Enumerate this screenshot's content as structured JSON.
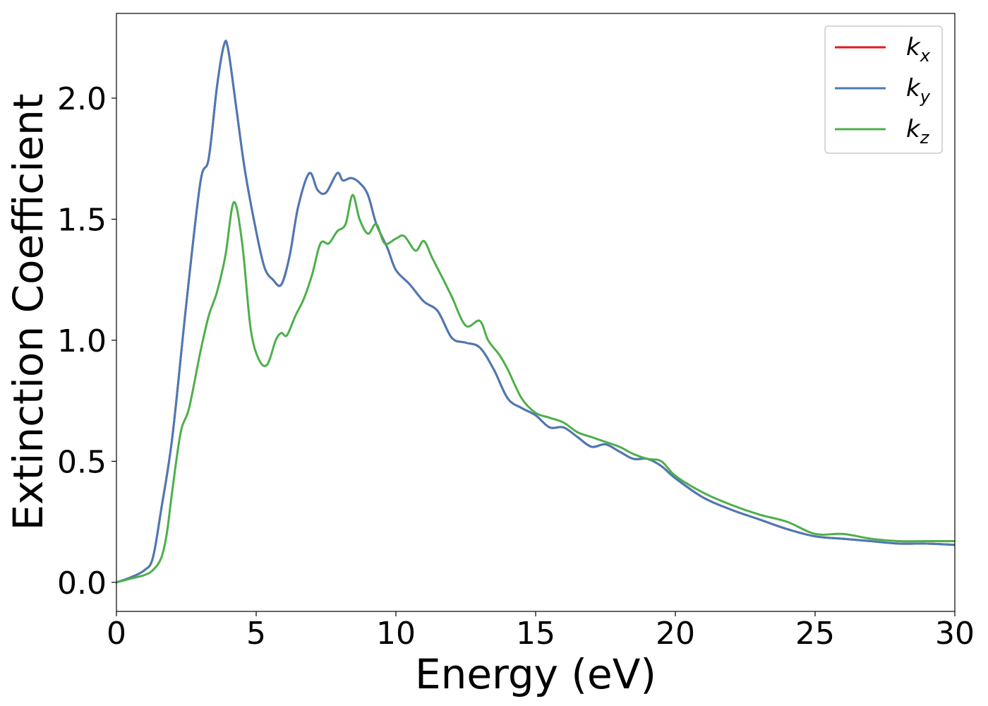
{
  "chart_data": {
    "type": "line",
    "title": "",
    "xlabel": "Energy (eV)",
    "ylabel": "Extinction Coefficient",
    "xlim": [
      0,
      30
    ],
    "ylim": [
      -0.12,
      2.35
    ],
    "xticks": [
      0,
      5,
      10,
      15,
      20,
      25,
      30
    ],
    "xtick_labels": [
      "0",
      "5",
      "10",
      "15",
      "20",
      "25",
      "30"
    ],
    "yticks": [
      0.0,
      0.5,
      1.0,
      1.5,
      2.0
    ],
    "ytick_labels": [
      "0.0",
      "0.5",
      "1.0",
      "1.5",
      "2.0"
    ],
    "grid": false,
    "legend_position": "top-right",
    "series": [
      {
        "name": "k_x",
        "legend_base": "k",
        "legend_sub": "x",
        "color": "#e41a1c",
        "x": [
          0,
          0.5,
          1.0,
          1.3,
          1.6,
          2.0,
          2.5,
          3.0,
          3.3,
          3.6,
          3.85,
          4.0,
          4.3,
          4.6,
          5.0,
          5.3,
          5.6,
          5.9,
          6.2,
          6.5,
          6.9,
          7.2,
          7.5,
          7.9,
          8.1,
          8.4,
          8.7,
          9.0,
          9.3,
          9.7,
          10.0,
          10.5,
          11.0,
          11.5,
          12.0,
          12.5,
          13.0,
          13.5,
          14.0,
          14.5,
          15.0,
          15.5,
          16.0,
          16.5,
          17.0,
          17.5,
          18.0,
          18.5,
          19.0,
          19.5,
          20.0,
          21.0,
          22.0,
          23.0,
          24.0,
          25.0,
          26.0,
          27.0,
          28.0,
          29.0,
          30.0
        ],
        "y": [
          0.0,
          0.02,
          0.05,
          0.1,
          0.3,
          0.6,
          1.15,
          1.65,
          1.75,
          2.05,
          2.22,
          2.2,
          1.95,
          1.7,
          1.45,
          1.3,
          1.25,
          1.23,
          1.35,
          1.55,
          1.69,
          1.62,
          1.61,
          1.69,
          1.66,
          1.67,
          1.65,
          1.6,
          1.48,
          1.38,
          1.29,
          1.23,
          1.16,
          1.12,
          1.01,
          0.99,
          0.97,
          0.88,
          0.76,
          0.72,
          0.69,
          0.64,
          0.64,
          0.6,
          0.56,
          0.57,
          0.54,
          0.51,
          0.51,
          0.48,
          0.43,
          0.35,
          0.3,
          0.26,
          0.22,
          0.19,
          0.18,
          0.17,
          0.16,
          0.16,
          0.155
        ]
      },
      {
        "name": "k_y",
        "legend_base": "k",
        "legend_sub": "y",
        "color": "#4a7ab5",
        "x": [
          0,
          0.5,
          1.0,
          1.3,
          1.6,
          2.0,
          2.5,
          3.0,
          3.3,
          3.6,
          3.85,
          4.0,
          4.3,
          4.6,
          5.0,
          5.3,
          5.6,
          5.9,
          6.2,
          6.5,
          6.9,
          7.2,
          7.5,
          7.9,
          8.1,
          8.4,
          8.7,
          9.0,
          9.3,
          9.7,
          10.0,
          10.5,
          11.0,
          11.5,
          12.0,
          12.5,
          13.0,
          13.5,
          14.0,
          14.5,
          15.0,
          15.5,
          16.0,
          16.5,
          17.0,
          17.5,
          18.0,
          18.5,
          19.0,
          19.5,
          20.0,
          21.0,
          22.0,
          23.0,
          24.0,
          25.0,
          26.0,
          27.0,
          28.0,
          29.0,
          30.0
        ],
        "y": [
          0.0,
          0.02,
          0.05,
          0.1,
          0.3,
          0.6,
          1.15,
          1.65,
          1.75,
          2.05,
          2.22,
          2.2,
          1.95,
          1.7,
          1.45,
          1.3,
          1.25,
          1.23,
          1.35,
          1.55,
          1.69,
          1.62,
          1.61,
          1.69,
          1.66,
          1.67,
          1.65,
          1.6,
          1.48,
          1.38,
          1.29,
          1.23,
          1.16,
          1.12,
          1.01,
          0.99,
          0.97,
          0.88,
          0.76,
          0.72,
          0.69,
          0.64,
          0.64,
          0.6,
          0.56,
          0.57,
          0.54,
          0.51,
          0.51,
          0.48,
          0.43,
          0.35,
          0.3,
          0.26,
          0.22,
          0.19,
          0.18,
          0.17,
          0.16,
          0.16,
          0.155
        ]
      },
      {
        "name": "k_z",
        "legend_base": "k",
        "legend_sub": "z",
        "color": "#4daf4a",
        "x": [
          0,
          0.5,
          1.0,
          1.3,
          1.6,
          1.8,
          2.0,
          2.3,
          2.6,
          3.0,
          3.3,
          3.6,
          3.9,
          4.2,
          4.5,
          4.8,
          5.1,
          5.4,
          5.7,
          5.9,
          6.1,
          6.4,
          6.7,
          7.0,
          7.3,
          7.6,
          7.9,
          8.2,
          8.45,
          8.7,
          9.0,
          9.3,
          9.6,
          10.0,
          10.3,
          10.7,
          11.0,
          11.3,
          11.7,
          12.0,
          12.5,
          13.0,
          13.3,
          13.7,
          14.0,
          14.5,
          15.0,
          15.5,
          16.0,
          16.5,
          17.0,
          17.5,
          18.0,
          18.5,
          19.0,
          19.5,
          20.0,
          21.0,
          22.0,
          23.0,
          24.0,
          25.0,
          26.0,
          27.0,
          28.0,
          29.0,
          30.0
        ],
        "y": [
          0.0,
          0.015,
          0.03,
          0.05,
          0.1,
          0.2,
          0.38,
          0.62,
          0.72,
          0.95,
          1.1,
          1.2,
          1.35,
          1.57,
          1.4,
          1.05,
          0.92,
          0.9,
          1.0,
          1.03,
          1.02,
          1.1,
          1.17,
          1.27,
          1.4,
          1.4,
          1.45,
          1.48,
          1.6,
          1.5,
          1.44,
          1.48,
          1.4,
          1.42,
          1.43,
          1.37,
          1.41,
          1.34,
          1.25,
          1.18,
          1.06,
          1.08,
          1.0,
          0.94,
          0.88,
          0.76,
          0.7,
          0.68,
          0.66,
          0.62,
          0.6,
          0.58,
          0.56,
          0.53,
          0.51,
          0.5,
          0.44,
          0.37,
          0.32,
          0.28,
          0.25,
          0.2,
          0.2,
          0.18,
          0.17,
          0.17,
          0.17
        ]
      }
    ]
  }
}
